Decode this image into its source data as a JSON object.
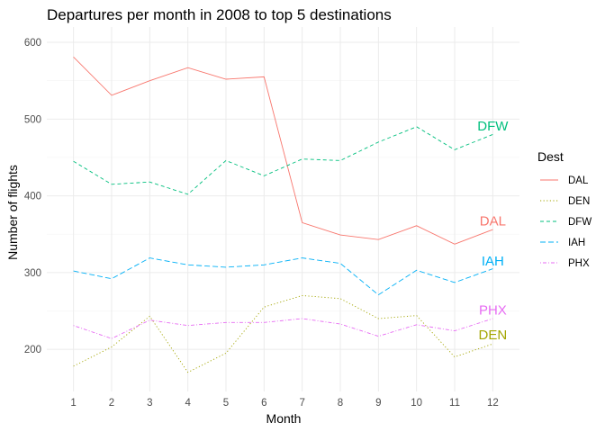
{
  "chart_data": {
    "type": "line",
    "title": "Departures per month in 2008 to top 5 destinations",
    "xlabel": "Month",
    "ylabel": "Number of flights",
    "x": [
      1,
      2,
      3,
      4,
      5,
      6,
      7,
      8,
      9,
      10,
      11,
      12
    ],
    "xlim": [
      0.3,
      12.7
    ],
    "ylim": [
      145,
      620
    ],
    "yticks": [
      200,
      300,
      400,
      500,
      600
    ],
    "grid": true,
    "legend": {
      "title": "Dest",
      "placement": "right"
    },
    "series": [
      {
        "name": "DAL",
        "color": "#F8766D",
        "dash": "solid",
        "values": [
          581,
          531,
          550,
          567,
          552,
          555,
          365,
          349,
          343,
          361,
          337,
          356
        ]
      },
      {
        "name": "DEN",
        "color": "#A3A500",
        "dash": "dotted",
        "values": [
          178,
          203,
          243,
          170,
          195,
          255,
          270,
          266,
          240,
          244,
          190,
          207
        ]
      },
      {
        "name": "DFW",
        "color": "#00BF7D",
        "dash": "dashed",
        "values": [
          445,
          415,
          418,
          402,
          446,
          426,
          448,
          446,
          470,
          490,
          460,
          480
        ]
      },
      {
        "name": "IAH",
        "color": "#00B0F6",
        "dash": "longdash",
        "values": [
          302,
          292,
          319,
          310,
          307,
          310,
          319,
          312,
          271,
          303,
          287,
          305
        ]
      },
      {
        "name": "PHX",
        "color": "#E76BF3",
        "dash": "dotdash",
        "values": [
          231,
          214,
          238,
          231,
          235,
          235,
          240,
          233,
          217,
          232,
          224,
          240
        ]
      }
    ],
    "end_labels": [
      {
        "text": "DFW",
        "series": "DFW",
        "y": 491
      },
      {
        "text": "DAL",
        "series": "DAL",
        "y": 367
      },
      {
        "text": "IAH",
        "series": "IAH",
        "y": 315
      },
      {
        "text": "PHX",
        "series": "PHX",
        "y": 251
      },
      {
        "text": "DEN",
        "series": "DEN",
        "y": 219
      }
    ]
  }
}
